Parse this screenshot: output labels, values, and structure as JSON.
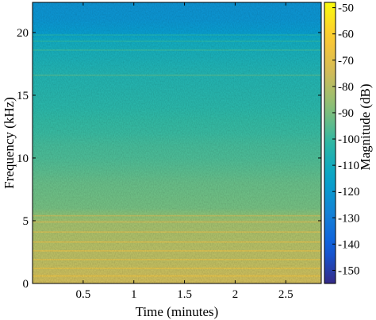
{
  "chart_data": {
    "type": "heatmap",
    "xlabel": "Time (minutes)",
    "ylabel": "Frequency (kHz)",
    "colorbar_label": "Magnitude (dB)",
    "xlim": [
      0,
      2.85
    ],
    "ylim": [
      0,
      22.4
    ],
    "xticks": [
      0.5,
      1,
      1.5,
      2,
      2.5
    ],
    "xtick_labels": [
      "0.5",
      "1",
      "1.5",
      "2",
      "2.5"
    ],
    "yticks": [
      0,
      5,
      10,
      15,
      20
    ],
    "ytick_labels": [
      "0",
      "5",
      "10",
      "15",
      "20"
    ],
    "clim": [
      -155,
      -48
    ],
    "cbticks": [
      -50,
      -60,
      -70,
      -80,
      -90,
      -100,
      -110,
      -120,
      -130,
      -140,
      -150
    ],
    "cbtick_labels": [
      "-50",
      "-60",
      "-70",
      "-80",
      "-90",
      "-100",
      "-110",
      "-120",
      "-130",
      "-140",
      "-150"
    ],
    "colormap": "parula",
    "colormap_stops": [
      "#352a87",
      "#0f5cdd",
      "#1481d6",
      "#06a4ca",
      "#2eb7a4",
      "#87bf77",
      "#d1bb59",
      "#fec832",
      "#f9fb0e"
    ],
    "frequency_profile_khz_db": [
      [
        0.0,
        -75
      ],
      [
        0.5,
        -76
      ],
      [
        1.0,
        -77
      ],
      [
        1.5,
        -78
      ],
      [
        2.0,
        -79
      ],
      [
        2.5,
        -79
      ],
      [
        3.0,
        -80
      ],
      [
        3.5,
        -81
      ],
      [
        4.0,
        -82
      ],
      [
        4.5,
        -83
      ],
      [
        5.0,
        -84
      ],
      [
        5.5,
        -88
      ],
      [
        6.0,
        -91
      ],
      [
        7.0,
        -92
      ],
      [
        8.0,
        -93
      ],
      [
        9.0,
        -95
      ],
      [
        10.0,
        -97
      ],
      [
        11.0,
        -98
      ],
      [
        12.0,
        -100
      ],
      [
        13.0,
        -101
      ],
      [
        14.0,
        -103
      ],
      [
        15.0,
        -104
      ],
      [
        16.0,
        -105
      ],
      [
        17.0,
        -106
      ],
      [
        18.0,
        -108
      ],
      [
        19.0,
        -110
      ],
      [
        19.5,
        -112
      ],
      [
        20.0,
        -118
      ],
      [
        21.0,
        -121
      ],
      [
        22.4,
        -122
      ]
    ],
    "horizontal_bands_khz": [
      0.6,
      1.2,
      1.9,
      2.6,
      3.3,
      4.1,
      4.9,
      5.4,
      16.6,
      18.6,
      19.3,
      19.8
    ]
  }
}
